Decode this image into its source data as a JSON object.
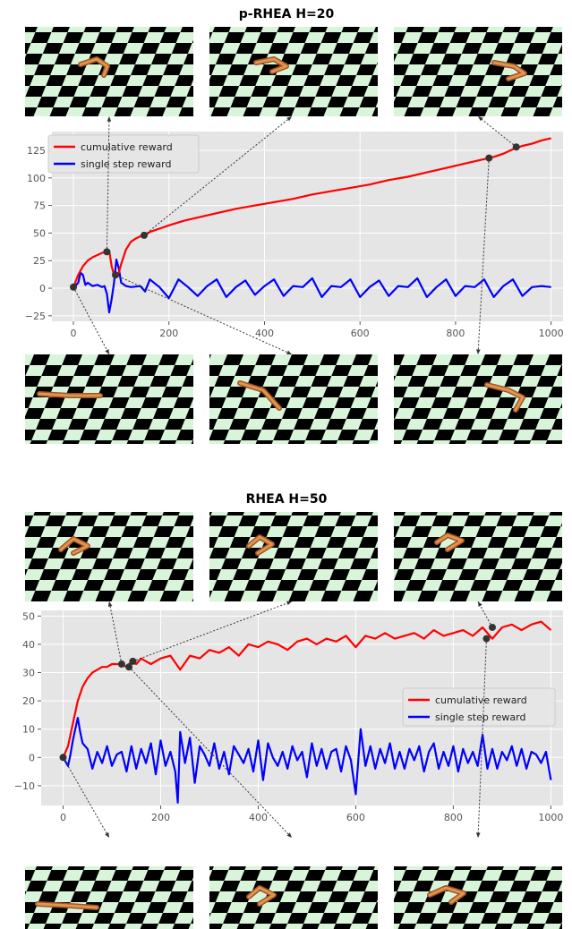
{
  "chart_data": [
    {
      "type": "line",
      "title": "p-RHEA  H=20",
      "xlim": [
        -45,
        1025
      ],
      "ylim": [
        -30,
        142
      ],
      "xticks": [
        0,
        200,
        400,
        600,
        800,
        1000
      ],
      "yticks": [
        -25,
        0,
        25,
        50,
        75,
        100,
        125
      ],
      "grid": true,
      "legend_position": "top-left",
      "series": [
        {
          "name": "cumulative reward",
          "color": "#ff0000",
          "x": [
            0,
            10,
            20,
            30,
            40,
            50,
            60,
            70,
            75,
            80,
            85,
            90,
            95,
            100,
            110,
            120,
            130,
            140,
            150,
            160,
            180,
            200,
            230,
            260,
            300,
            340,
            380,
            420,
            460,
            500,
            540,
            580,
            620,
            660,
            700,
            740,
            780,
            820,
            860,
            880,
            900,
            920,
            940,
            960,
            980,
            1000
          ],
          "y": [
            1,
            12,
            20,
            25,
            28,
            30,
            32,
            33,
            34,
            20,
            12,
            10,
            14,
            22,
            35,
            42,
            45,
            47,
            48,
            51,
            54,
            57,
            61,
            64,
            68,
            72,
            75,
            78,
            81,
            85,
            88,
            91,
            94,
            98,
            101,
            105,
            109,
            113,
            117,
            119,
            122,
            126,
            129,
            131,
            134,
            136
          ]
        },
        {
          "name": "single step reward",
          "color": "#0000ff",
          "x": [
            0,
            10,
            15,
            20,
            25,
            30,
            40,
            50,
            60,
            65,
            70,
            75,
            80,
            85,
            90,
            95,
            100,
            110,
            120,
            140,
            150,
            160,
            180,
            200,
            220,
            240,
            260,
            280,
            300,
            320,
            340,
            360,
            380,
            400,
            420,
            440,
            460,
            480,
            500,
            520,
            540,
            560,
            580,
            600,
            620,
            640,
            660,
            680,
            700,
            720,
            740,
            760,
            780,
            800,
            820,
            840,
            860,
            880,
            900,
            920,
            940,
            960,
            980,
            1000
          ],
          "y": [
            0,
            5,
            14,
            12,
            3,
            5,
            2,
            3,
            1,
            2,
            -5,
            -22,
            -10,
            5,
            26,
            18,
            5,
            2,
            1,
            2,
            -3,
            8,
            1,
            -9,
            8,
            1,
            -7,
            2,
            8,
            -8,
            1,
            7,
            -6,
            2,
            8,
            -7,
            2,
            1,
            9,
            -8,
            2,
            1,
            8,
            -8,
            1,
            7,
            -7,
            2,
            1,
            9,
            -8,
            1,
            8,
            -7,
            2,
            1,
            8,
            -8,
            2,
            8,
            -7,
            1,
            2,
            1
          ]
        }
      ],
      "points": [
        {
          "x": 0,
          "y": 1
        },
        {
          "x": 70,
          "y": 33
        },
        {
          "x": 88,
          "y": 12
        },
        {
          "x": 148,
          "y": 48
        },
        {
          "x": 870,
          "y": 118
        },
        {
          "x": 927,
          "y": 128
        }
      ]
    },
    {
      "type": "line",
      "title": "RHEA  H=50",
      "xlim": [
        -45,
        1025
      ],
      "ylim": [
        -17,
        52
      ],
      "xticks": [
        0,
        200,
        400,
        600,
        800,
        1000
      ],
      "yticks": [
        -10,
        0,
        10,
        20,
        30,
        40,
        50
      ],
      "grid": true,
      "legend_position": "center-right",
      "series": [
        {
          "name": "cumulative reward",
          "color": "#ff0000",
          "x": [
            0,
            10,
            20,
            30,
            40,
            50,
            60,
            70,
            80,
            90,
            100,
            110,
            120,
            130,
            140,
            150,
            160,
            170,
            180,
            200,
            220,
            240,
            260,
            280,
            300,
            320,
            340,
            360,
            380,
            400,
            420,
            440,
            460,
            480,
            500,
            520,
            540,
            560,
            580,
            600,
            620,
            640,
            660,
            680,
            700,
            720,
            740,
            760,
            780,
            800,
            820,
            840,
            860,
            880,
            900,
            920,
            940,
            960,
            980,
            1000
          ],
          "y": [
            0,
            4,
            12,
            20,
            25,
            28,
            30,
            31,
            32,
            32,
            33,
            33,
            33,
            32,
            34,
            33,
            35,
            34,
            33,
            35,
            36,
            31,
            36,
            35,
            38,
            37,
            39,
            36,
            40,
            39,
            41,
            40,
            38,
            41,
            42,
            40,
            42,
            41,
            43,
            39,
            43,
            42,
            44,
            42,
            43,
            44,
            42,
            45,
            43,
            44,
            45,
            43,
            46,
            42,
            46,
            47,
            45,
            47,
            48,
            45
          ]
        },
        {
          "name": "single step reward",
          "color": "#0000ff",
          "x": [
            0,
            10,
            15,
            20,
            25,
            30,
            35,
            40,
            50,
            60,
            70,
            80,
            90,
            100,
            110,
            120,
            130,
            140,
            150,
            160,
            170,
            180,
            190,
            200,
            210,
            220,
            230,
            235,
            240,
            250,
            260,
            270,
            280,
            290,
            300,
            310,
            320,
            330,
            340,
            350,
            360,
            370,
            380,
            390,
            400,
            410,
            420,
            430,
            440,
            450,
            460,
            470,
            480,
            490,
            500,
            510,
            520,
            530,
            540,
            550,
            560,
            570,
            580,
            590,
            600,
            610,
            620,
            630,
            640,
            650,
            660,
            670,
            680,
            690,
            700,
            710,
            720,
            730,
            740,
            750,
            760,
            770,
            780,
            790,
            800,
            810,
            820,
            830,
            840,
            850,
            860,
            870,
            880,
            890,
            900,
            910,
            920,
            930,
            940,
            950,
            960,
            970,
            980,
            990,
            1000
          ],
          "y": [
            0,
            -3,
            1,
            6,
            10,
            14,
            9,
            5,
            3,
            -4,
            2,
            -2,
            4,
            -3,
            1,
            2,
            -5,
            4,
            -4,
            3,
            -2,
            5,
            -6,
            6,
            -3,
            2,
            -5,
            -16,
            9,
            -2,
            7,
            -9,
            4,
            1,
            -3,
            5,
            -4,
            2,
            -6,
            4,
            1,
            -2,
            3,
            -5,
            6,
            -8,
            5,
            0,
            -3,
            2,
            -4,
            4,
            -1,
            2,
            -7,
            5,
            -3,
            3,
            -4,
            2,
            3,
            -5,
            4,
            -1,
            -13,
            10,
            -3,
            4,
            -4,
            3,
            -2,
            5,
            -4,
            2,
            -4,
            3,
            -1,
            4,
            -5,
            2,
            5,
            -4,
            2,
            -3,
            4,
            -5,
            3,
            -2,
            2,
            -3,
            8,
            -4,
            3,
            -4,
            2,
            -1,
            4,
            -3,
            3,
            -4,
            2,
            1,
            -2,
            2,
            -8
          ]
        }
      ],
      "points": [
        {
          "x": 0,
          "y": 0
        },
        {
          "x": 120,
          "y": 33
        },
        {
          "x": 135,
          "y": 32
        },
        {
          "x": 143,
          "y": 34
        },
        {
          "x": 868,
          "y": 42
        },
        {
          "x": 880,
          "y": 46
        }
      ]
    }
  ]
}
